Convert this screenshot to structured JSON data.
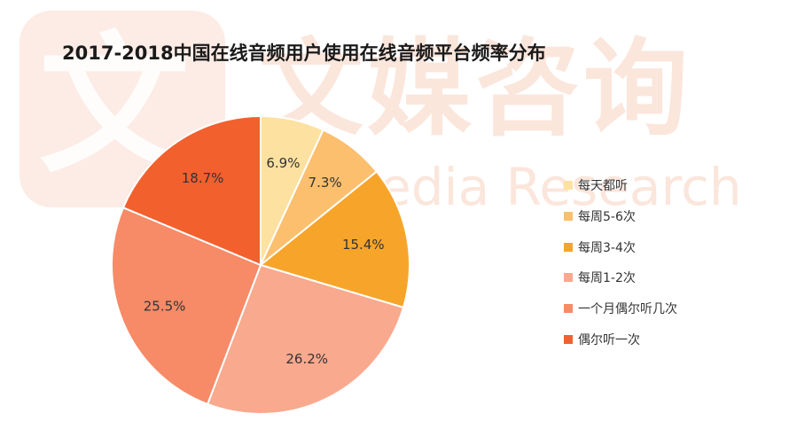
{
  "watermark": {
    "glyph": "文",
    "cn_text": "文媒咨询",
    "en_text": "Media Research"
  },
  "chart_data": {
    "type": "pie",
    "title": "2017-2018中国在线音频用户使用在线音频平台频率分布",
    "legend_position": "right",
    "slices": [
      {
        "label": "每天都听",
        "value": 6.9,
        "display": "6.9%",
        "color": "#fde1a0"
      },
      {
        "label": "每周5-6次",
        "value": 7.3,
        "display": "7.3%",
        "color": "#fbbf6e"
      },
      {
        "label": "每周3-4次",
        "value": 15.4,
        "display": "15.4%",
        "color": "#f7a52a"
      },
      {
        "label": "每周1-2次",
        "value": 26.2,
        "display": "26.2%",
        "color": "#f9a98e"
      },
      {
        "label": "一个月偶尔听几次",
        "value": 25.5,
        "display": "25.5%",
        "color": "#f78a67"
      },
      {
        "label": "偶尔听一次",
        "value": 18.7,
        "display": "18.7%",
        "color": "#f2602e"
      }
    ]
  }
}
